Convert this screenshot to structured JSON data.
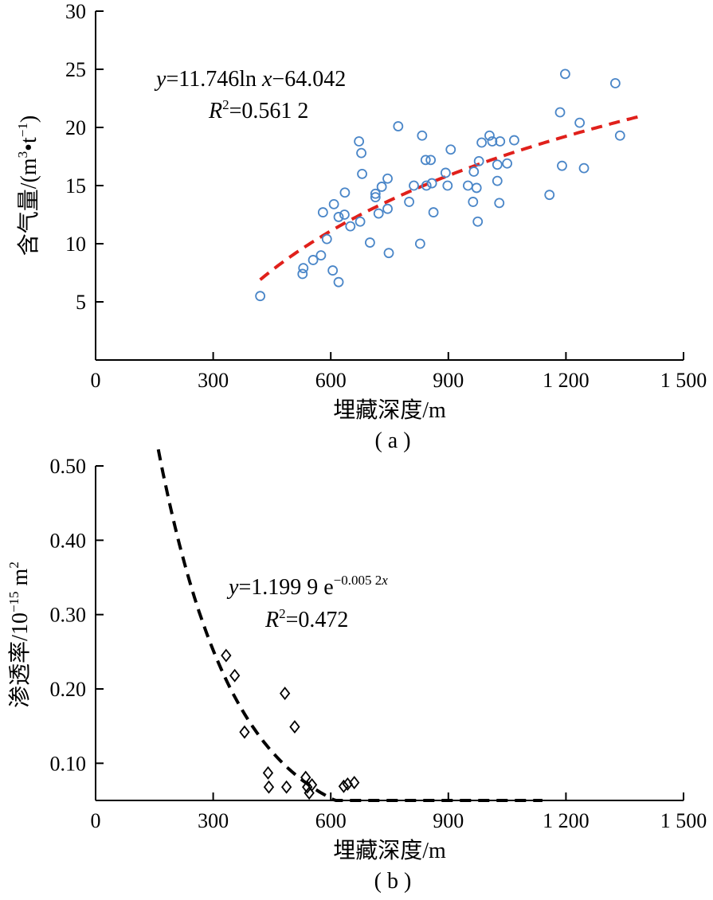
{
  "chart_data": [
    {
      "type": "scatter",
      "panel_label": "( a )",
      "xlabel": "埋藏深度/m",
      "ylabel": "含气量/(m³•t⁻¹)",
      "xlim": [
        0,
        1500
      ],
      "ylim": [
        0,
        30
      ],
      "xticks": [
        "0",
        "300",
        "600",
        "900",
        "1 200",
        "1 500"
      ],
      "yticks": [
        "5",
        "10",
        "15",
        "20",
        "25",
        "30"
      ],
      "equation": "y=11.746ln x−64.042",
      "r_squared": "R²=0.561 2",
      "marker": "circle",
      "marker_color": "#4a86c8",
      "fit": {
        "kind": "log",
        "a": 11.746,
        "b": -64.042,
        "x_from": 420,
        "x_to": 1400,
        "color": "#e0201b"
      },
      "points": [
        [
          420,
          5.5
        ],
        [
          528,
          7.4
        ],
        [
          530,
          7.9
        ],
        [
          555,
          8.6
        ],
        [
          575,
          9.0
        ],
        [
          605,
          7.7
        ],
        [
          620,
          6.7
        ],
        [
          590,
          10.4
        ],
        [
          580,
          12.7
        ],
        [
          608,
          13.4
        ],
        [
          620,
          12.3
        ],
        [
          635,
          12.5
        ],
        [
          636,
          14.4
        ],
        [
          650,
          11.5
        ],
        [
          675,
          11.9
        ],
        [
          672,
          18.8
        ],
        [
          678,
          17.8
        ],
        [
          680,
          16.0
        ],
        [
          700,
          10.1
        ],
        [
          714,
          14.0
        ],
        [
          714,
          14.3
        ],
        [
          722,
          12.6
        ],
        [
          730,
          14.9
        ],
        [
          745,
          13.0
        ],
        [
          745,
          15.6
        ],
        [
          748,
          9.2
        ],
        [
          772,
          20.1
        ],
        [
          800,
          13.6
        ],
        [
          812,
          15.0
        ],
        [
          828,
          10.0
        ],
        [
          833,
          19.3
        ],
        [
          842,
          17.2
        ],
        [
          844,
          15.0
        ],
        [
          855,
          17.2
        ],
        [
          858,
          15.2
        ],
        [
          862,
          12.7
        ],
        [
          893,
          16.1
        ],
        [
          898,
          15.0
        ],
        [
          906,
          18.1
        ],
        [
          950,
          15.0
        ],
        [
          963,
          13.6
        ],
        [
          965,
          16.2
        ],
        [
          972,
          14.8
        ],
        [
          975,
          11.9
        ],
        [
          978,
          17.1
        ],
        [
          985,
          18.7
        ],
        [
          1005,
          19.3
        ],
        [
          1012,
          18.8
        ],
        [
          1025,
          16.8
        ],
        [
          1025,
          15.4
        ],
        [
          1030,
          13.5
        ],
        [
          1032,
          18.8
        ],
        [
          1050,
          16.9
        ],
        [
          1068,
          18.9
        ],
        [
          1158,
          14.2
        ],
        [
          1185,
          21.3
        ],
        [
          1190,
          16.7
        ],
        [
          1198,
          24.6
        ],
        [
          1235,
          20.4
        ],
        [
          1246,
          16.5
        ],
        [
          1326,
          23.8
        ],
        [
          1338,
          19.3
        ]
      ]
    },
    {
      "type": "scatter",
      "panel_label": "( b )",
      "xlabel": "埋藏深度/m",
      "ylabel": "渗透率/10⁻¹⁵ m²",
      "xlim": [
        0,
        1500
      ],
      "ylim": [
        0.05,
        0.5
      ],
      "xticks": [
        "0",
        "300",
        "600",
        "900",
        "1 200",
        "1 500"
      ],
      "yticks": [
        "0.10",
        "0.20",
        "0.30",
        "0.40",
        "0.50"
      ],
      "equation": "y=1.199 9 e",
      "equation_exponent": "−0.005 2x",
      "r_squared": "R²=0.472",
      "marker": "diamond",
      "marker_color": "#000000",
      "fit": {
        "kind": "exp",
        "a": 1.1999,
        "k": -0.0052,
        "x_from": 160,
        "x_to": 1140,
        "color": "#000000"
      },
      "points": [
        [
          333,
          0.245
        ],
        [
          355,
          0.218
        ],
        [
          380,
          0.142
        ],
        [
          440,
          0.087
        ],
        [
          442,
          0.068
        ],
        [
          483,
          0.194
        ],
        [
          487,
          0.068
        ],
        [
          508,
          0.149
        ],
        [
          536,
          0.081
        ],
        [
          540,
          0.068
        ],
        [
          545,
          0.06
        ],
        [
          552,
          0.071
        ],
        [
          633,
          0.069
        ],
        [
          643,
          0.072
        ],
        [
          660,
          0.074
        ]
      ]
    }
  ]
}
